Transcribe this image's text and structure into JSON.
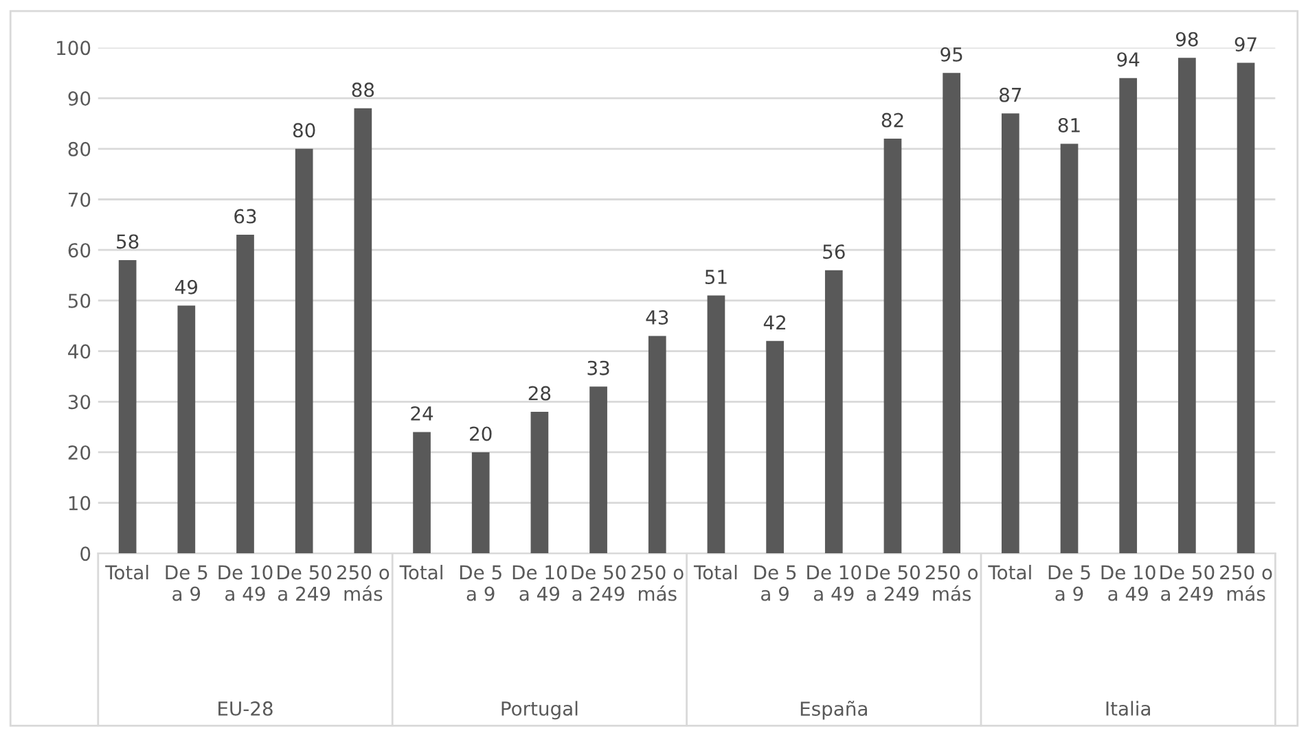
{
  "chart_data": {
    "type": "bar",
    "categories": [
      "Total",
      "De 5 a 9",
      "De 10 a 49",
      "De 50 a 249",
      "250 o más",
      "Total",
      "De 5 a 9",
      "De 10 a 49",
      "De 50 a 249",
      "250 o más",
      "Total",
      "De 5 a 9",
      "De 10 a 49",
      "De 50 a 249",
      "250 o más",
      "Total",
      "De 5 a 9",
      "De 10 a 49",
      "De 50 a 249",
      "250 o más"
    ],
    "values": [
      58,
      49,
      63,
      80,
      88,
      24,
      20,
      28,
      33,
      43,
      51,
      42,
      56,
      82,
      95,
      87,
      81,
      94,
      98,
      97
    ],
    "color": "#595959",
    "annotations": [
      "EU-28",
      "Portugal",
      "España",
      "Italia"
    ],
    "ylim": [
      0,
      100
    ],
    "yticks": [
      0,
      10,
      20,
      30,
      40,
      50,
      60,
      70,
      80,
      90,
      100
    ],
    "grid": "y",
    "data_labels": true
  }
}
